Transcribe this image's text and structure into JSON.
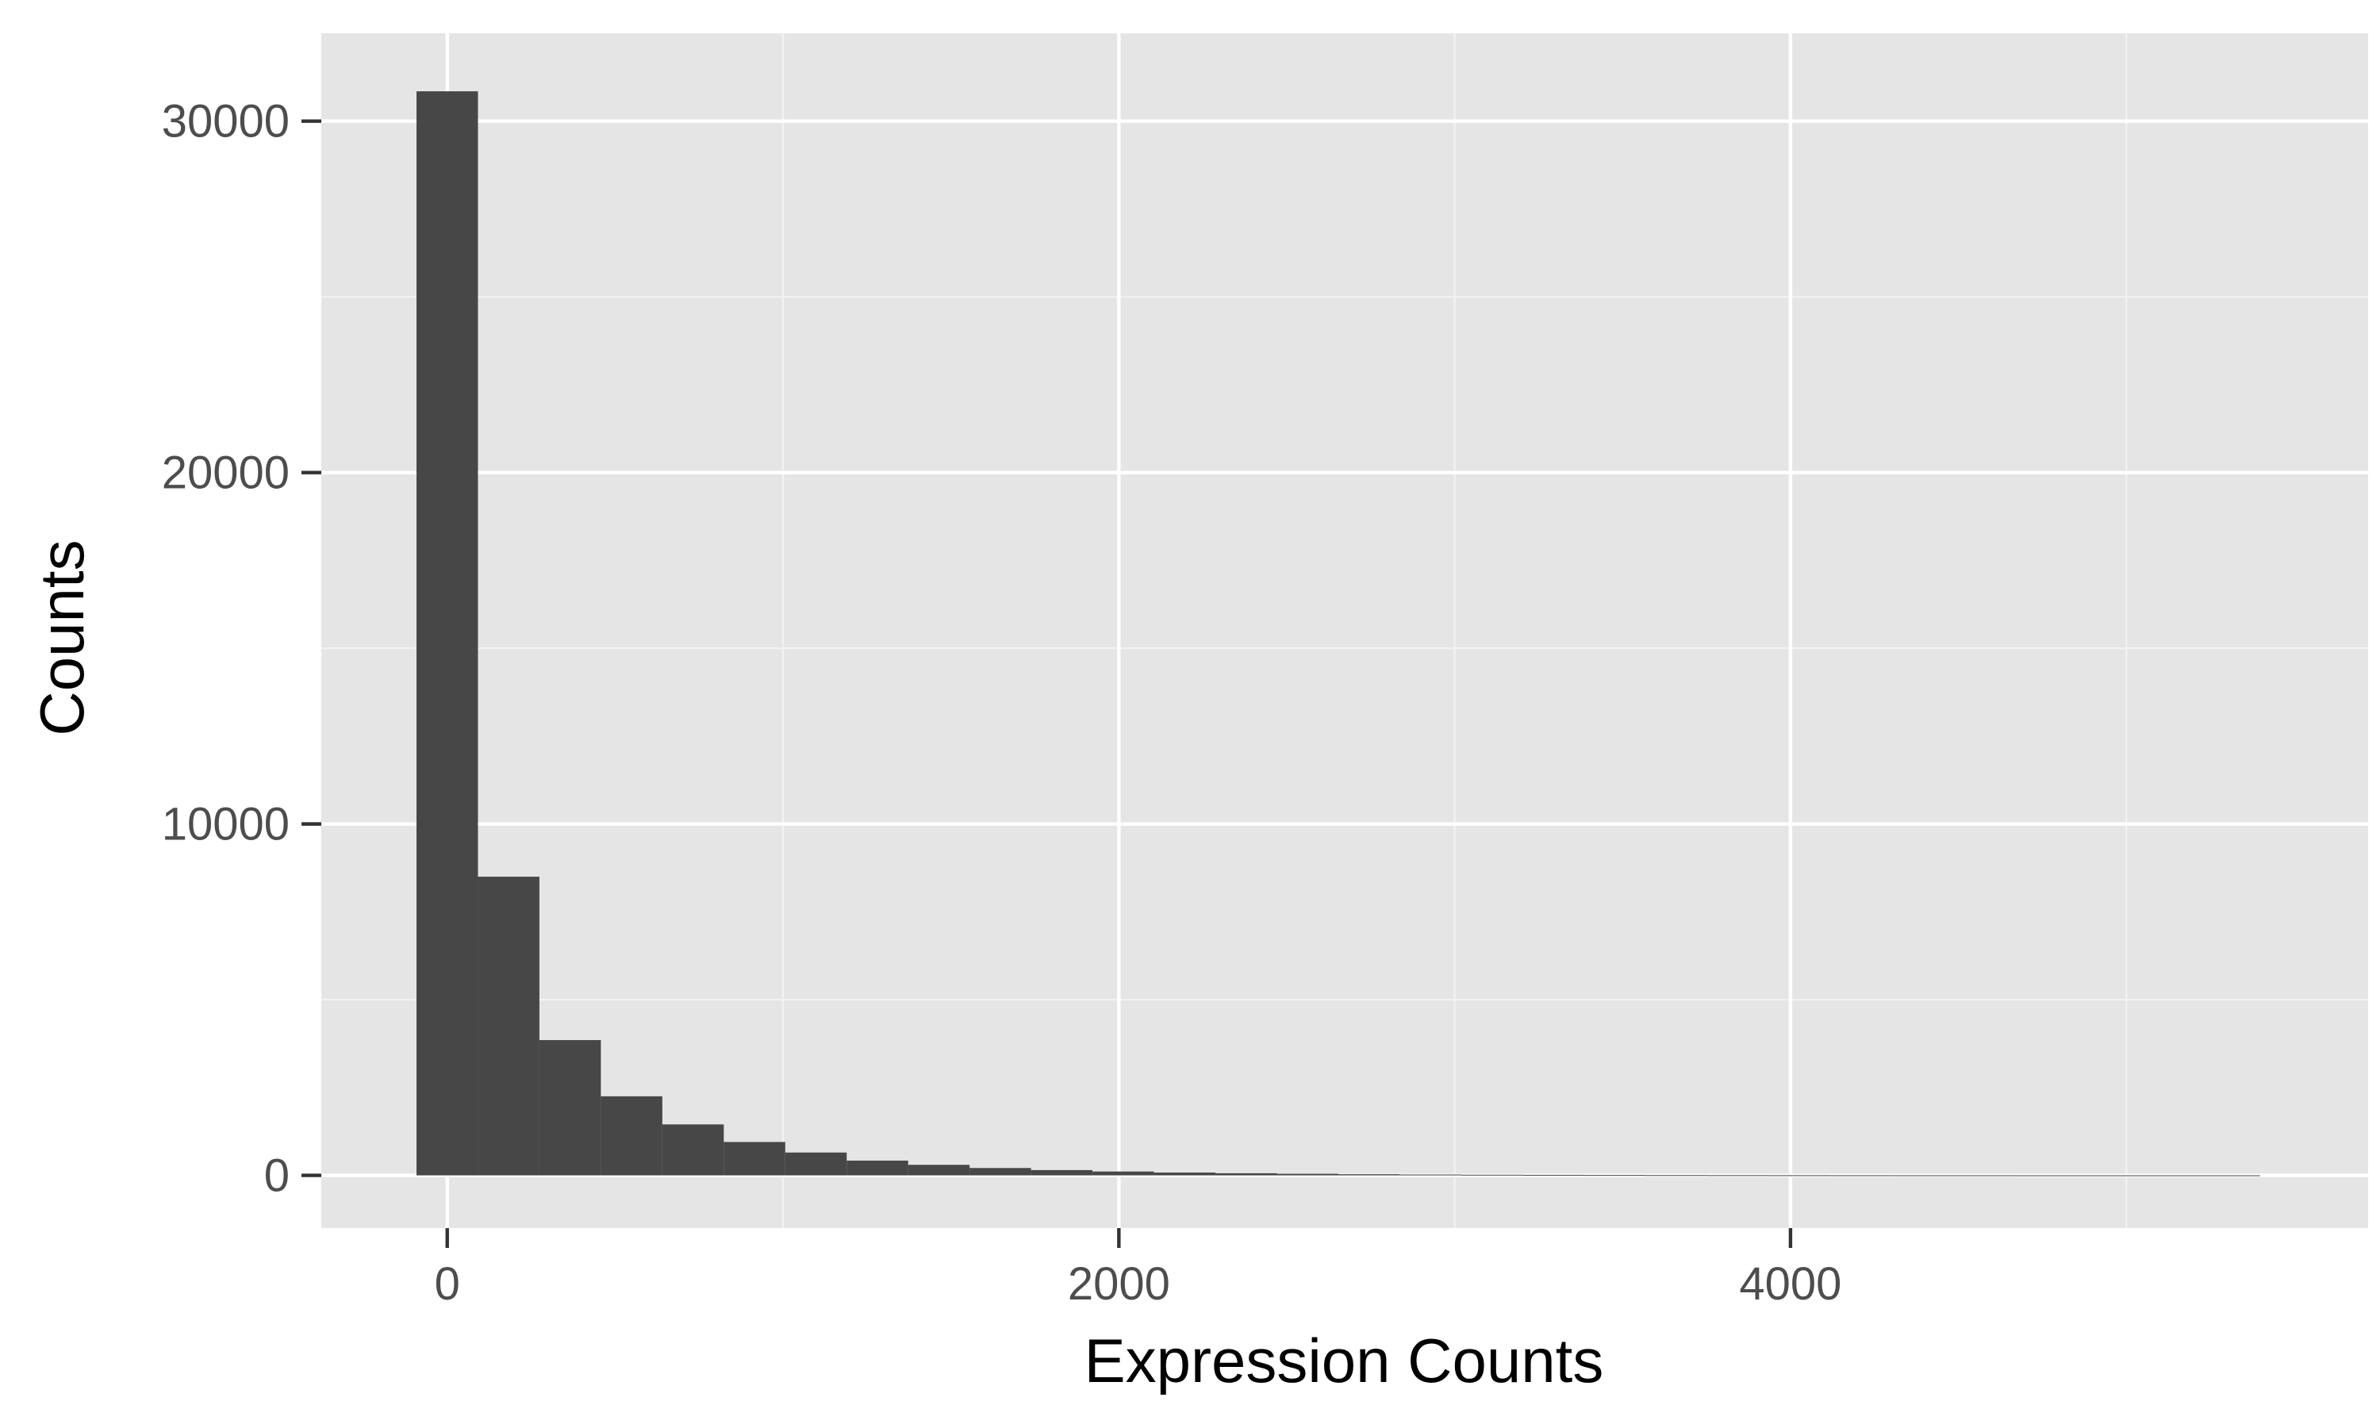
{
  "chart_data": {
    "type": "bar",
    "subtype": "histogram",
    "xlabel": "Expression Counts",
    "ylabel": "Counts",
    "x_ticks": [
      0,
      2000,
      4000
    ],
    "y_ticks": [
      0,
      10000,
      20000,
      30000
    ],
    "xlim": [
      -375,
      5720
    ],
    "ylim": [
      -1500,
      32500
    ],
    "bin_width": 183,
    "bins": [
      {
        "x0": -91.5,
        "x1": 91.5,
        "count": 30850
      },
      {
        "x0": 91.5,
        "x1": 274.5,
        "count": 8500
      },
      {
        "x0": 274.5,
        "x1": 457.5,
        "count": 3850
      },
      {
        "x0": 457.5,
        "x1": 640.5,
        "count": 2250
      },
      {
        "x0": 640.5,
        "x1": 823.5,
        "count": 1450
      },
      {
        "x0": 823.5,
        "x1": 1006.5,
        "count": 950
      },
      {
        "x0": 1006.5,
        "x1": 1189.5,
        "count": 650
      },
      {
        "x0": 1189.5,
        "x1": 1372.5,
        "count": 420
      },
      {
        "x0": 1372.5,
        "x1": 1555.5,
        "count": 300
      },
      {
        "x0": 1555.5,
        "x1": 1738.5,
        "count": 210
      },
      {
        "x0": 1738.5,
        "x1": 1921.5,
        "count": 150
      },
      {
        "x0": 1921.5,
        "x1": 2104.5,
        "count": 110
      },
      {
        "x0": 2104.5,
        "x1": 2287.5,
        "count": 80
      },
      {
        "x0": 2287.5,
        "x1": 2470.5,
        "count": 60
      },
      {
        "x0": 2470.5,
        "x1": 2653.5,
        "count": 45
      },
      {
        "x0": 2653.5,
        "x1": 2836.5,
        "count": 32
      },
      {
        "x0": 2836.5,
        "x1": 3019.5,
        "count": 24
      },
      {
        "x0": 3019.5,
        "x1": 3202.5,
        "count": 18
      },
      {
        "x0": 3202.5,
        "x1": 3385.5,
        "count": 14
      },
      {
        "x0": 3385.5,
        "x1": 3568.5,
        "count": 10
      },
      {
        "x0": 3568.5,
        "x1": 3751.5,
        "count": 7
      },
      {
        "x0": 3751.5,
        "x1": 3934.5,
        "count": 5
      },
      {
        "x0": 3934.5,
        "x1": 4117.5,
        "count": 4
      },
      {
        "x0": 4117.5,
        "x1": 4300.5,
        "count": 3
      },
      {
        "x0": 4300.5,
        "x1": 4483.5,
        "count": 2
      },
      {
        "x0": 4483.5,
        "x1": 4666.5,
        "count": 2
      },
      {
        "x0": 4666.5,
        "x1": 4849.5,
        "count": 1
      },
      {
        "x0": 4849.5,
        "x1": 5032.5,
        "count": 1
      },
      {
        "x0": 5032.5,
        "x1": 5215.5,
        "count": 1
      },
      {
        "x0": 5215.5,
        "x1": 5398.5,
        "count": 1
      }
    ],
    "grid": true,
    "legend": "none",
    "colors": {
      "panel_background": "#e5e5e5",
      "grid_major": "#ffffff",
      "grid_minor": "#f2f2f2",
      "bar_fill": "#474747",
      "tick_mark": "#333333",
      "tick_label": "#4d4d4d",
      "axis_title": "#000000"
    }
  }
}
